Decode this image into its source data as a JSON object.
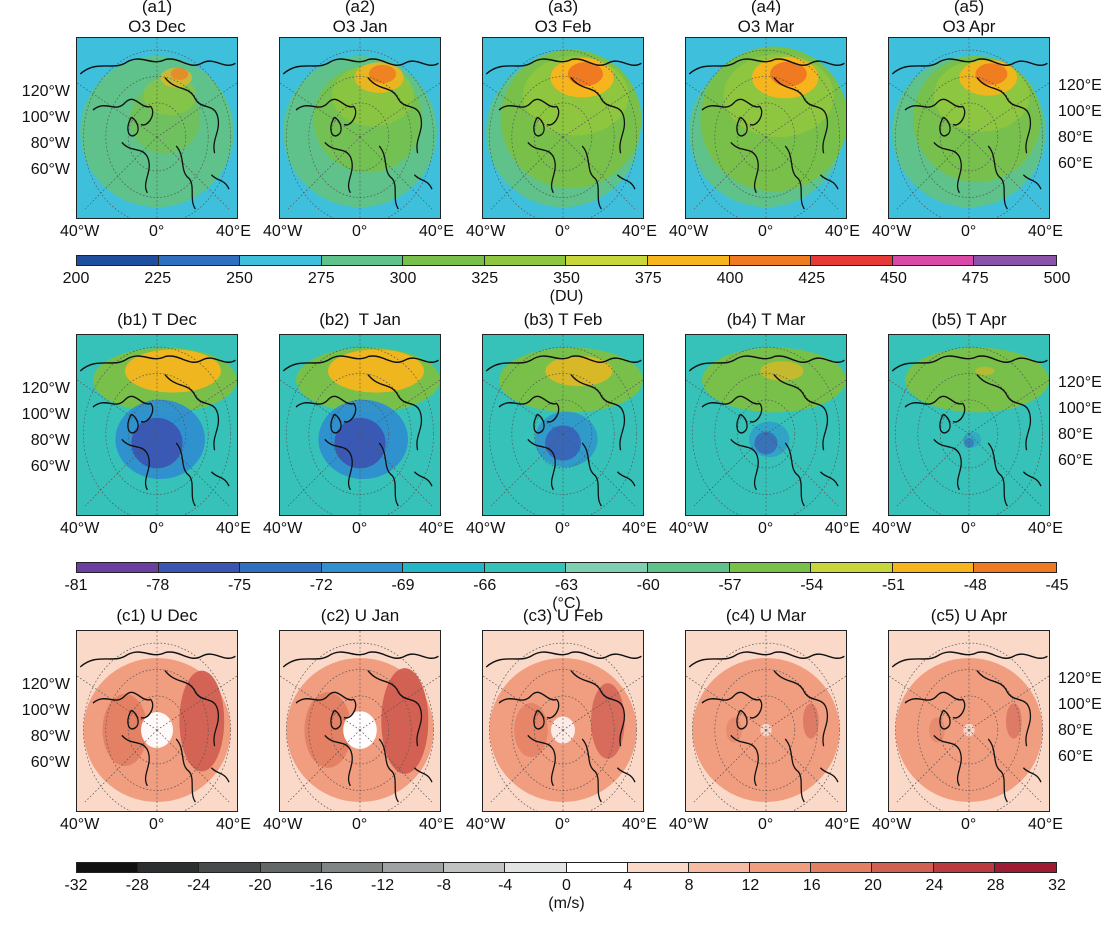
{
  "rows": [
    {
      "id": "o3",
      "titles": [
        [
          "(a1)",
          "O3 Dec"
        ],
        [
          "(a2)",
          "O3 Jan"
        ],
        [
          "(a3)",
          "O3 Feb"
        ],
        [
          "(a4)",
          "O3 Mar"
        ],
        [
          "(a5)",
          "O3 Apr"
        ]
      ],
      "colorbar": {
        "ticks": [
          "200",
          "225",
          "250",
          "275",
          "300",
          "325",
          "350",
          "375",
          "400",
          "425",
          "450",
          "475",
          "500"
        ],
        "colors": [
          "#1f4e9e",
          "#2f6fc0",
          "#3ec0dd",
          "#5ec28a",
          "#78c04a",
          "#8ec63f",
          "#c7d63a",
          "#f6b51c",
          "#f07a22",
          "#e63a38",
          "#d94aa6",
          "#8b53a8"
        ],
        "unit": "(DU)"
      },
      "field": {
        "background": [
          [
            "#3ec0dd",
            1.0
          ]
        ],
        "blobs": [
          [
            0.5,
            0.52,
            0.48,
            0.42,
            "#5ec28a"
          ],
          [
            0.55,
            0.45,
            0.4,
            0.35,
            "#78c04a"
          ],
          [
            0.58,
            0.32,
            0.3,
            0.2,
            "#8ec63f"
          ],
          [
            0.62,
            0.22,
            0.18,
            0.1,
            "#f6b51c"
          ],
          [
            0.64,
            0.2,
            0.1,
            0.06,
            "#f07a22"
          ]
        ],
        "intensity": [
          0.55,
          0.85,
          1.1,
          1.15,
          1.0
        ]
      }
    },
    {
      "id": "t",
      "titles": [
        [
          "(b1) T Dec",
          ""
        ],
        [
          "(b2)  T Jan",
          ""
        ],
        [
          "(b3) T Feb",
          ""
        ],
        [
          "(b4) T Mar",
          ""
        ],
        [
          "(b5) T Apr",
          ""
        ]
      ],
      "colorbar": {
        "ticks": [
          "-81",
          "-78",
          "-75",
          "-72",
          "-69",
          "-66",
          "-63",
          "-60",
          "-57",
          "-54",
          "-51",
          "-48",
          "-45"
        ],
        "colors": [
          "#6a3fa0",
          "#3a56b3",
          "#2f6fc0",
          "#2f8fcf",
          "#24b6c6",
          "#36c2b8",
          "#7fcfb2",
          "#5ec28a",
          "#78c04a",
          "#c7d63a",
          "#f6b51c",
          "#f07a22"
        ],
        "unit": "(°C)"
      },
      "field": {
        "background": [
          [
            "#36c2b8",
            1.0
          ]
        ],
        "blobs": [
          [
            0.55,
            0.25,
            0.45,
            0.18,
            "#78c04a"
          ],
          [
            0.6,
            0.2,
            0.3,
            0.12,
            "#f6b51c"
          ],
          [
            0.52,
            0.58,
            0.28,
            0.22,
            "#2f8fcf"
          ],
          [
            0.5,
            0.6,
            0.16,
            0.14,
            "#3a56b3"
          ]
        ],
        "intensity": [
          1.0,
          1.0,
          0.7,
          0.45,
          0.2
        ]
      }
    },
    {
      "id": "u",
      "titles": [
        [
          "(c1) U Dec",
          ""
        ],
        [
          "(c2) U Jan",
          ""
        ],
        [
          "(c3) U Feb",
          ""
        ],
        [
          "(c4) U Mar",
          ""
        ],
        [
          "(c5) U Apr",
          ""
        ]
      ],
      "colorbar": {
        "ticks": [
          "-32",
          "-28",
          "-24",
          "-20",
          "-16",
          "-12",
          "-8",
          "-4",
          "0",
          "4",
          "8",
          "12",
          "16",
          "20",
          "24",
          "28",
          "32"
        ],
        "colors": [
          "#111111",
          "#2c2f30",
          "#474b4c",
          "#626767",
          "#808585",
          "#9fa3a3",
          "#c1c3c3",
          "#e2e3e3",
          "#ffffff",
          "#fbd9c9",
          "#f6bba3",
          "#f09d80",
          "#e37f62",
          "#d16052",
          "#bb3a3f",
          "#9e1b34"
        ],
        "unit": "(m/s)"
      },
      "field": {
        "background": [
          [
            "#fbd9c9",
            1.0
          ]
        ],
        "blobs": [
          [
            0.5,
            0.55,
            0.46,
            0.4,
            "#f09d80"
          ],
          [
            0.78,
            0.5,
            0.14,
            0.28,
            "#d16052"
          ],
          [
            0.3,
            0.55,
            0.14,
            0.2,
            "#e37f62"
          ],
          [
            0.5,
            0.55,
            0.1,
            0.1,
            "#ffffff"
          ]
        ],
        "intensity": [
          1.0,
          1.05,
          0.75,
          0.35,
          0.35
        ]
      }
    }
  ],
  "axes": {
    "left_lat_labels": [
      "120°W",
      "100°W",
      "80°W",
      "60°W"
    ],
    "right_lat_labels": [
      "120°E",
      "100°E",
      "80°E",
      "60°E"
    ],
    "bottom_lon_labels": [
      "40°W",
      "0°",
      "40°E"
    ]
  },
  "colors": {
    "frame": "#222222",
    "coast": "#111111",
    "grid": "#555555"
  }
}
